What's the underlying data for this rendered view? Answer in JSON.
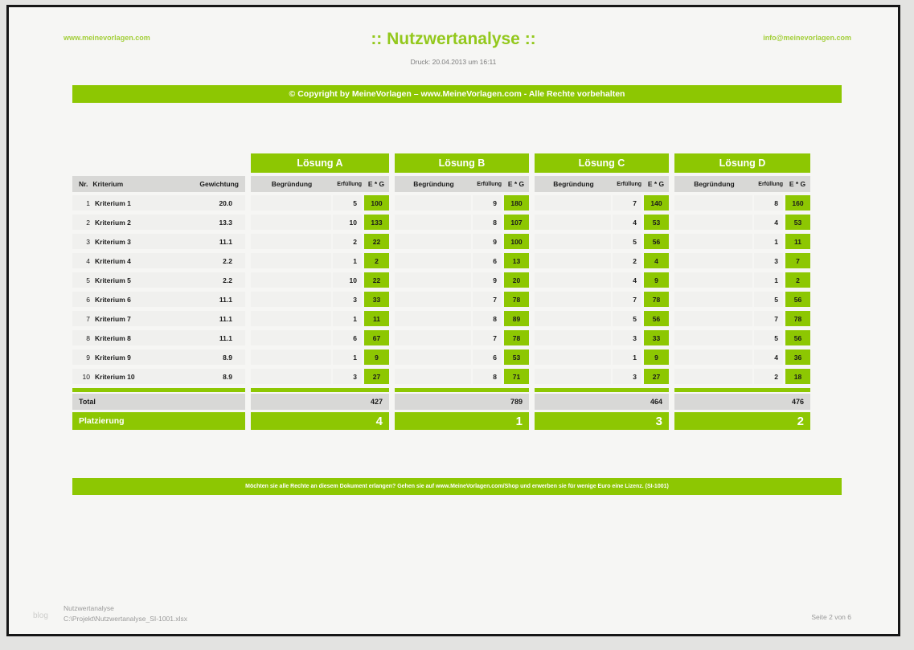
{
  "colors": {
    "accent_green": "#8dc702",
    "link_green": "#a3cf3a",
    "band_gray": "#d8d8d6",
    "row_gray": "#f0f0ee",
    "page_bg": "#f6f6f4",
    "frame_black": "#161616"
  },
  "header": {
    "left_link": "www.meinevorlagen.com",
    "title": ":: Nutzwertanalyse ::",
    "right_link": "info@meinevorlagen.com",
    "print_line": "Druck: 20.04.2013 um 16:11"
  },
  "copyright_banner": "© Copyright by MeineVorlagen – www.MeineVorlagen.com - Alle Rechte vorbehalten",
  "license_banner": "Möchten sie alle Rechte an diesem Dokument erlangen? Gehen sie auf www.MeineVorlagen.com/Shop und erwerben sie für wenige Euro eine Lizenz. (SI-1001)",
  "table": {
    "criteria_header": {
      "nr": "Nr.",
      "kriterium": "Kriterium",
      "gewichtung": "Gewichtung"
    },
    "solution_subheader": {
      "begruendung": "Begründung",
      "erfuellung": "Erfüllung",
      "eg": "E * G"
    },
    "total_label": "Total",
    "rank_label": "Platzierung",
    "criteria": [
      {
        "nr": "1",
        "name": "Kriterium 1",
        "weight": "20.0"
      },
      {
        "nr": "2",
        "name": "Kriterium 2",
        "weight": "13.3"
      },
      {
        "nr": "3",
        "name": "Kriterium 3",
        "weight": "11.1"
      },
      {
        "nr": "4",
        "name": "Kriterium 4",
        "weight": "2.2"
      },
      {
        "nr": "5",
        "name": "Kriterium 5",
        "weight": "2.2"
      },
      {
        "nr": "6",
        "name": "Kriterium 6",
        "weight": "11.1"
      },
      {
        "nr": "7",
        "name": "Kriterium 7",
        "weight": "11.1"
      },
      {
        "nr": "8",
        "name": "Kriterium 8",
        "weight": "11.1"
      },
      {
        "nr": "9",
        "name": "Kriterium 9",
        "weight": "8.9"
      },
      {
        "nr": "10",
        "name": "Kriterium 10",
        "weight": "8.9"
      }
    ],
    "solutions": [
      {
        "name": "Lösung A",
        "erfuellung": [
          5,
          10,
          2,
          1,
          10,
          3,
          1,
          6,
          1,
          3
        ],
        "eg": [
          100,
          133,
          22,
          2,
          22,
          33,
          11,
          67,
          9,
          27
        ],
        "total": "427",
        "rank": "4"
      },
      {
        "name": "Lösung B",
        "erfuellung": [
          9,
          8,
          9,
          6,
          9,
          7,
          8,
          7,
          6,
          8
        ],
        "eg": [
          180,
          107,
          100,
          13,
          20,
          78,
          89,
          78,
          53,
          71
        ],
        "total": "789",
        "rank": "1"
      },
      {
        "name": "Lösung C",
        "erfuellung": [
          7,
          4,
          5,
          2,
          4,
          7,
          5,
          3,
          1,
          3
        ],
        "eg": [
          140,
          53,
          56,
          4,
          9,
          78,
          56,
          33,
          9,
          27
        ],
        "total": "464",
        "rank": "3"
      },
      {
        "name": "Lösung D",
        "erfuellung": [
          8,
          4,
          1,
          3,
          1,
          5,
          7,
          5,
          4,
          2
        ],
        "eg": [
          160,
          53,
          11,
          7,
          2,
          56,
          78,
          56,
          36,
          18
        ],
        "total": "476",
        "rank": "2"
      }
    ]
  },
  "footer": {
    "doc_name": "Nutzwertanalyse",
    "file_path": "C:\\Projekt\\Nutzwertanalyse_SI-1001.xlsx",
    "page_indicator": "Seite 2 von 6",
    "watermark": "blog"
  }
}
